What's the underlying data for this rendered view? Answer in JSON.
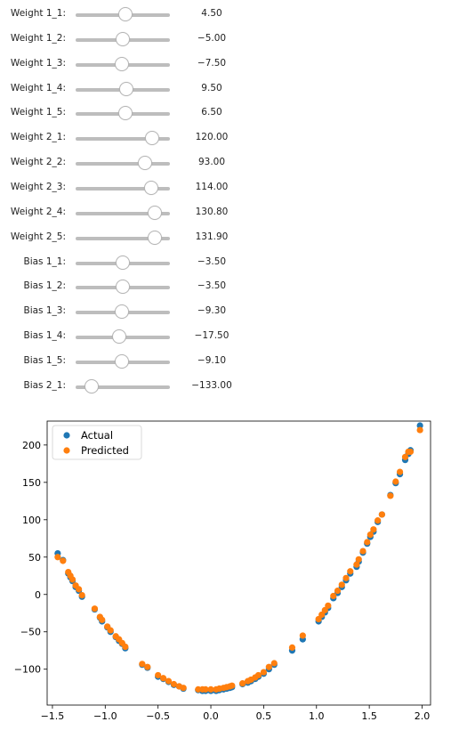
{
  "sliders": [
    {
      "label": "Weight 1_1:",
      "value": "4.50",
      "fraction": 0.52
    },
    {
      "label": "Weight 1_2:",
      "value": "−5.00",
      "fraction": 0.49
    },
    {
      "label": "Weight 1_3:",
      "value": "−7.50",
      "fraction": 0.48
    },
    {
      "label": "Weight 1_4:",
      "value": "9.50",
      "fraction": 0.53
    },
    {
      "label": "Weight 1_5:",
      "value": "6.50",
      "fraction": 0.52
    },
    {
      "label": "Weight 2_1:",
      "value": "120.00",
      "fraction": 0.8
    },
    {
      "label": "Weight 2_2:",
      "value": "93.00",
      "fraction": 0.73
    },
    {
      "label": "Weight 2_3:",
      "value": "114.00",
      "fraction": 0.79
    },
    {
      "label": "Weight 2_4:",
      "value": "130.80",
      "fraction": 0.83
    },
    {
      "label": "Weight 2_5:",
      "value": "131.90",
      "fraction": 0.83
    },
    {
      "label": "Bias 1_1:",
      "value": "−3.50",
      "fraction": 0.49
    },
    {
      "label": "Bias 1_2:",
      "value": "−3.50",
      "fraction": 0.49
    },
    {
      "label": "Bias 1_3:",
      "value": "−9.30",
      "fraction": 0.48
    },
    {
      "label": "Bias 1_4:",
      "value": "−17.50",
      "fraction": 0.45
    },
    {
      "label": "Bias 1_5:",
      "value": "−9.10",
      "fraction": 0.48
    },
    {
      "label": "Bias 2_1:",
      "value": "−133.00",
      "fraction": 0.16
    }
  ],
  "chart_data": {
    "type": "scatter",
    "title": "",
    "xlabel": "",
    "ylabel": "",
    "xlim": [
      -1.55,
      2.08
    ],
    "ylim": [
      -148,
      232
    ],
    "xticks": [
      -1.5,
      -1.0,
      -0.5,
      0.0,
      0.5,
      1.0,
      1.5,
      2.0
    ],
    "xtick_labels": [
      "−1.5",
      "−1.0",
      "−0.5",
      "0.0",
      "0.5",
      "1.0",
      "1.5",
      "2.0"
    ],
    "yticks": [
      200,
      150,
      100,
      50,
      0,
      -50,
      -100
    ],
    "ytick_labels": [
      "200",
      "150",
      "100",
      "50",
      "0",
      "−50",
      "−100"
    ],
    "legend_position": "top-left",
    "grid": false,
    "x": [
      -1.45,
      -1.4,
      -1.35,
      -1.33,
      -1.31,
      -1.28,
      -1.25,
      -1.22,
      -1.1,
      -1.05,
      -1.03,
      -0.98,
      -0.95,
      -0.9,
      -0.87,
      -0.84,
      -0.81,
      -0.65,
      -0.6,
      -0.5,
      -0.45,
      -0.4,
      -0.35,
      -0.3,
      -0.26,
      -0.12,
      -0.08,
      -0.05,
      0.0,
      0.05,
      0.08,
      0.12,
      0.15,
      0.18,
      0.2,
      0.3,
      0.35,
      0.38,
      0.42,
      0.45,
      0.5,
      0.55,
      0.6,
      0.77,
      0.87,
      1.02,
      1.05,
      1.08,
      1.11,
      1.16,
      1.2,
      1.24,
      1.28,
      1.32,
      1.38,
      1.4,
      1.44,
      1.48,
      1.51,
      1.54,
      1.58,
      1.62,
      1.7,
      1.75,
      1.79,
      1.84,
      1.87,
      1.89,
      1.98
    ],
    "series": [
      {
        "name": "Actual",
        "color": "#1f77b4",
        "y": [
          55,
          46,
          28,
          23,
          18,
          10,
          5,
          -3,
          -20,
          -31,
          -36,
          -44,
          -50,
          -57,
          -62,
          -66,
          -72,
          -94,
          -98,
          -110,
          -113,
          -117,
          -121,
          -123,
          -126,
          -128,
          -129,
          -129,
          -129,
          -129,
          -128,
          -127,
          -126,
          -125,
          -124,
          -120,
          -118,
          -116,
          -113,
          -110,
          -106,
          -100,
          -94,
          -75,
          -60,
          -36,
          -30,
          -24,
          -18,
          -5,
          2,
          10,
          19,
          28,
          37,
          44,
          56,
          68,
          77,
          84,
          97,
          107,
          133,
          149,
          161,
          180,
          188,
          193,
          226
        ]
      },
      {
        "name": "Predicted",
        "color": "#ff7f0e",
        "y": [
          50,
          45,
          30,
          25,
          20,
          12,
          7,
          -1,
          -19,
          -30,
          -34,
          -43,
          -48,
          -56,
          -60,
          -65,
          -70,
          -93,
          -97,
          -108,
          -112,
          -116,
          -120,
          -123,
          -125,
          -127,
          -127,
          -127,
          -127,
          -127,
          -126,
          -125,
          -124,
          -123,
          -122,
          -119,
          -116,
          -114,
          -111,
          -108,
          -104,
          -97,
          -92,
          -71,
          -55,
          -33,
          -27,
          -21,
          -15,
          -2,
          5,
          13,
          22,
          31,
          40,
          47,
          58,
          70,
          80,
          87,
          99,
          107,
          132,
          151,
          164,
          184,
          191,
          191,
          220
        ]
      }
    ]
  }
}
